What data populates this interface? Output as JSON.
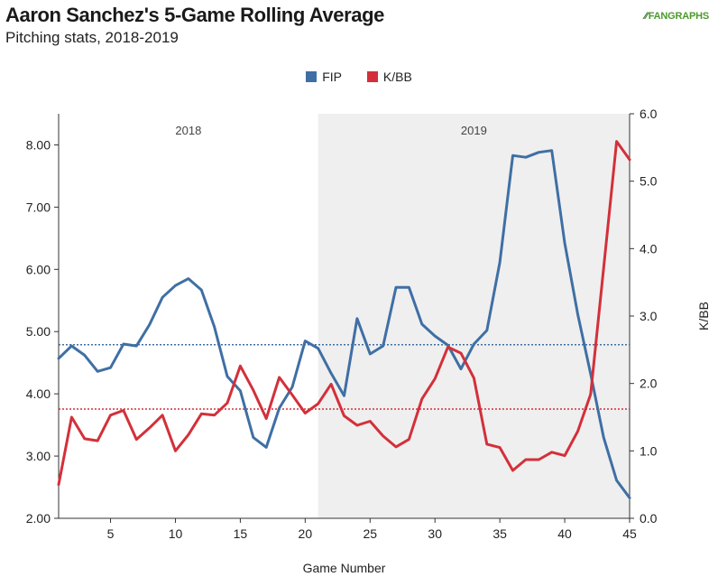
{
  "header": {
    "title": "Aaron Sanchez's 5-Game Rolling Average",
    "subtitle": "Pitching stats, 2018-2019",
    "logo_mark": "⁄⁄",
    "logo": "FANGRAPHS"
  },
  "colors": {
    "fip": "#3f6fa4",
    "kbb": "#d3303a",
    "shade": "#efefef",
    "axis": "#333333"
  },
  "chart_data": {
    "type": "line",
    "xlabel": "Game Number",
    "ylabel_left": "",
    "ylabel_right": "K/BB",
    "xlim": [
      1,
      45
    ],
    "ylim_left": [
      2.0,
      8.5
    ],
    "ylim_right": [
      0.0,
      6.0
    ],
    "x_ticks": [
      5,
      10,
      15,
      20,
      25,
      30,
      35,
      40,
      45
    ],
    "y_left_ticks": [
      "2.00",
      "3.00",
      "4.00",
      "5.00",
      "6.00",
      "7.00",
      "8.00"
    ],
    "y_right_ticks": [
      "0.0",
      "1.0",
      "2.0",
      "3.0",
      "4.0",
      "5.0",
      "6.0"
    ],
    "legend_position": "top-center",
    "grid": false,
    "seasons": [
      {
        "label": "2018",
        "start": 1,
        "end": 21
      },
      {
        "label": "2019",
        "start": 21,
        "end": 45
      }
    ],
    "x": [
      1,
      2,
      3,
      4,
      5,
      6,
      7,
      8,
      9,
      10,
      11,
      12,
      13,
      14,
      15,
      16,
      17,
      18,
      19,
      20,
      21,
      22,
      23,
      24,
      25,
      26,
      27,
      28,
      29,
      30,
      31,
      32,
      33,
      34,
      35,
      36,
      37,
      38,
      39,
      40,
      41,
      42,
      43,
      44,
      45
    ],
    "series": [
      {
        "name": "FIP",
        "axis": "left",
        "color_key": "fip",
        "average": 4.79,
        "values": [
          4.57,
          4.77,
          4.62,
          4.36,
          4.42,
          4.8,
          4.77,
          5.11,
          5.55,
          5.74,
          5.85,
          5.67,
          5.08,
          4.28,
          4.05,
          3.3,
          3.14,
          3.77,
          4.11,
          4.85,
          4.73,
          4.33,
          3.97,
          5.21,
          4.64,
          4.77,
          5.71,
          5.71,
          5.12,
          4.93,
          4.78,
          4.4,
          4.8,
          5.02,
          6.11,
          7.83,
          7.8,
          7.88,
          7.91,
          6.42,
          5.28,
          4.32,
          3.3,
          2.61,
          2.33
        ]
      },
      {
        "name": "K/BB",
        "axis": "right",
        "color_key": "kbb",
        "average": 1.62,
        "values": [
          0.5,
          1.5,
          1.18,
          1.15,
          1.53,
          1.6,
          1.17,
          1.34,
          1.53,
          1.0,
          1.24,
          1.55,
          1.53,
          1.71,
          2.26,
          1.9,
          1.48,
          2.09,
          1.83,
          1.56,
          1.7,
          1.99,
          1.52,
          1.38,
          1.44,
          1.22,
          1.06,
          1.17,
          1.77,
          2.07,
          2.54,
          2.45,
          2.08,
          1.1,
          1.05,
          0.71,
          0.87,
          0.87,
          0.98,
          0.93,
          1.29,
          1.84,
          3.71,
          5.59,
          5.32
        ]
      }
    ]
  }
}
